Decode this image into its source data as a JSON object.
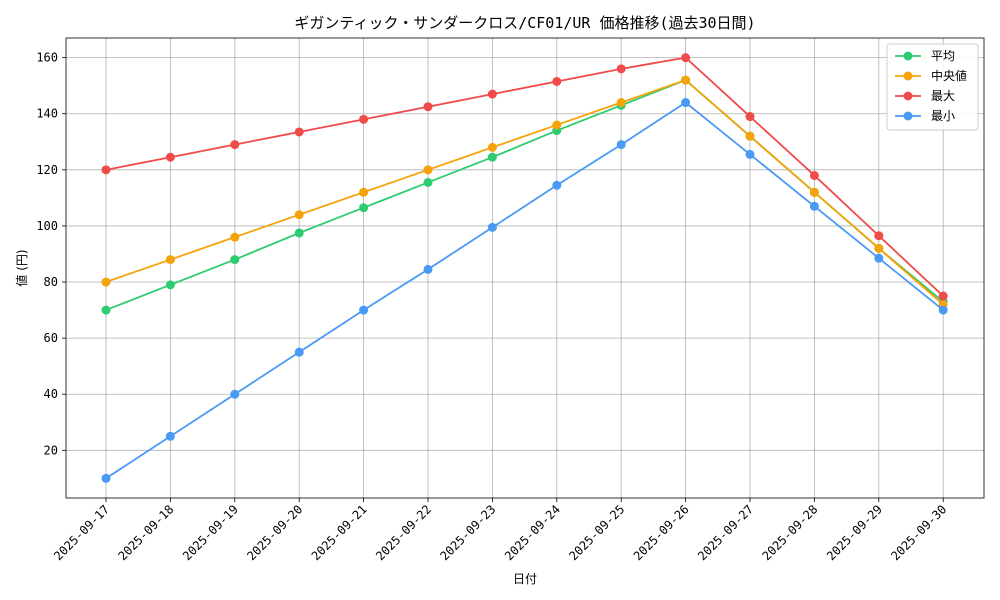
{
  "chart_data": {
    "type": "line",
    "title": "ギガンティック・サンダークロス/CF01/UR 価格推移(過去30日間)",
    "xlabel": "日付",
    "ylabel": "値 (円)",
    "categories": [
      "2025-09-17",
      "2025-09-18",
      "2025-09-19",
      "2025-09-20",
      "2025-09-21",
      "2025-09-22",
      "2025-09-23",
      "2025-09-24",
      "2025-09-25",
      "2025-09-26",
      "2025-09-27",
      "2025-09-28",
      "2025-09-29",
      "2025-09-30"
    ],
    "ylim": [
      3,
      167
    ],
    "yticks": [
      20,
      40,
      60,
      80,
      100,
      120,
      140,
      160
    ],
    "grid": true,
    "legend_position": "top-right",
    "series": [
      {
        "name": "平均",
        "color": "#2ecc71",
        "values": [
          70,
          79,
          88,
          97.5,
          106.5,
          115.5,
          124.5,
          134,
          143,
          152,
          132,
          112,
          92,
          73
        ]
      },
      {
        "name": "中央値",
        "color": "#f5a30a",
        "values": [
          80,
          88,
          96,
          104,
          112,
          120,
          128,
          136,
          144,
          152,
          132,
          112,
          92,
          72
        ]
      },
      {
        "name": "最大",
        "color": "#f04b4b",
        "values": [
          120,
          124.5,
          129,
          133.5,
          138,
          142.5,
          147,
          151.5,
          156,
          160,
          139,
          118,
          96.5,
          75
        ]
      },
      {
        "name": "最小",
        "color": "#4a9af5",
        "values": [
          10,
          25,
          40,
          55,
          70,
          84.5,
          99.5,
          114.5,
          129,
          144,
          125.5,
          107,
          88.5,
          70
        ]
      }
    ]
  }
}
